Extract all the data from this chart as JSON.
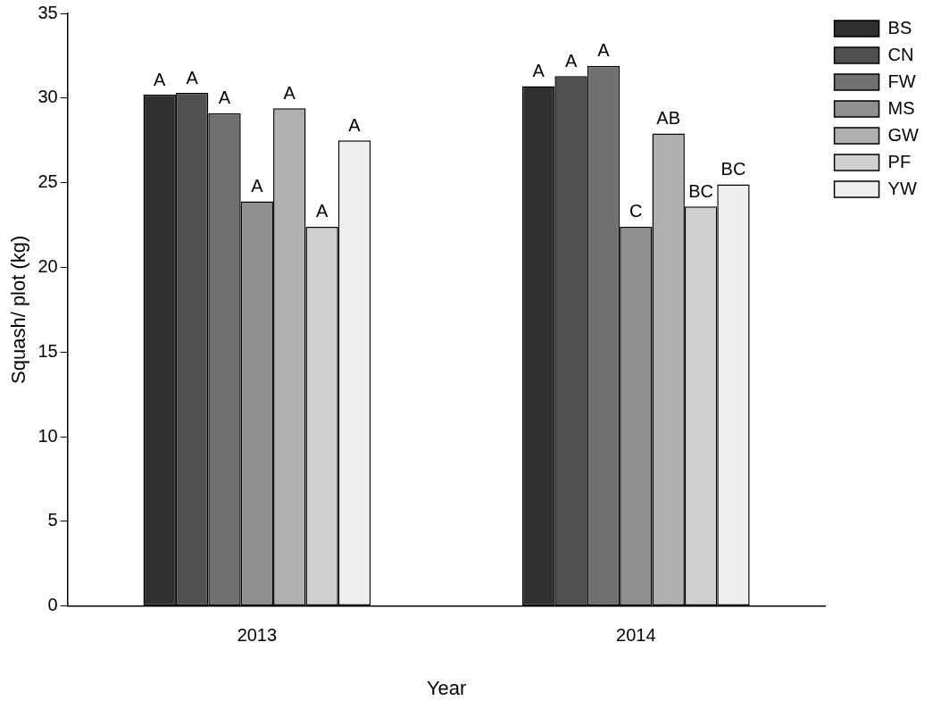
{
  "chart_data": {
    "type": "bar",
    "xlabel": "Year",
    "ylabel": "Squash/ plot (kg)",
    "categories": [
      "2013",
      "2014"
    ],
    "series": [
      {
        "name": "BS",
        "color": "#303030",
        "values": [
          30.2,
          30.7
        ],
        "value_labels": [
          "A",
          "A"
        ]
      },
      {
        "name": "CN",
        "color": "#505050",
        "values": [
          30.3,
          31.3
        ],
        "value_labels": [
          "A",
          "A"
        ]
      },
      {
        "name": "FW",
        "color": "#707070",
        "values": [
          29.1,
          31.9
        ],
        "value_labels": [
          "A",
          "A"
        ]
      },
      {
        "name": "MS",
        "color": "#8f8f8f",
        "values": [
          23.9,
          22.4
        ],
        "value_labels": [
          "A",
          "C"
        ]
      },
      {
        "name": "GW",
        "color": "#b0b0b0",
        "values": [
          29.4,
          27.9
        ],
        "value_labels": [
          "A",
          "AB"
        ]
      },
      {
        "name": "PF",
        "color": "#d0d0d0",
        "values": [
          22.4,
          23.6
        ],
        "value_labels": [
          "A",
          "BC"
        ]
      },
      {
        "name": "YW",
        "color": "#eeeeee",
        "values": [
          27.5,
          24.9
        ],
        "value_labels": [
          "A",
          "BC"
        ]
      }
    ],
    "ylim": [
      0,
      35
    ],
    "yticks": [
      0,
      5,
      10,
      15,
      20,
      25,
      30,
      35
    ],
    "grid": false,
    "legend": "top right"
  }
}
